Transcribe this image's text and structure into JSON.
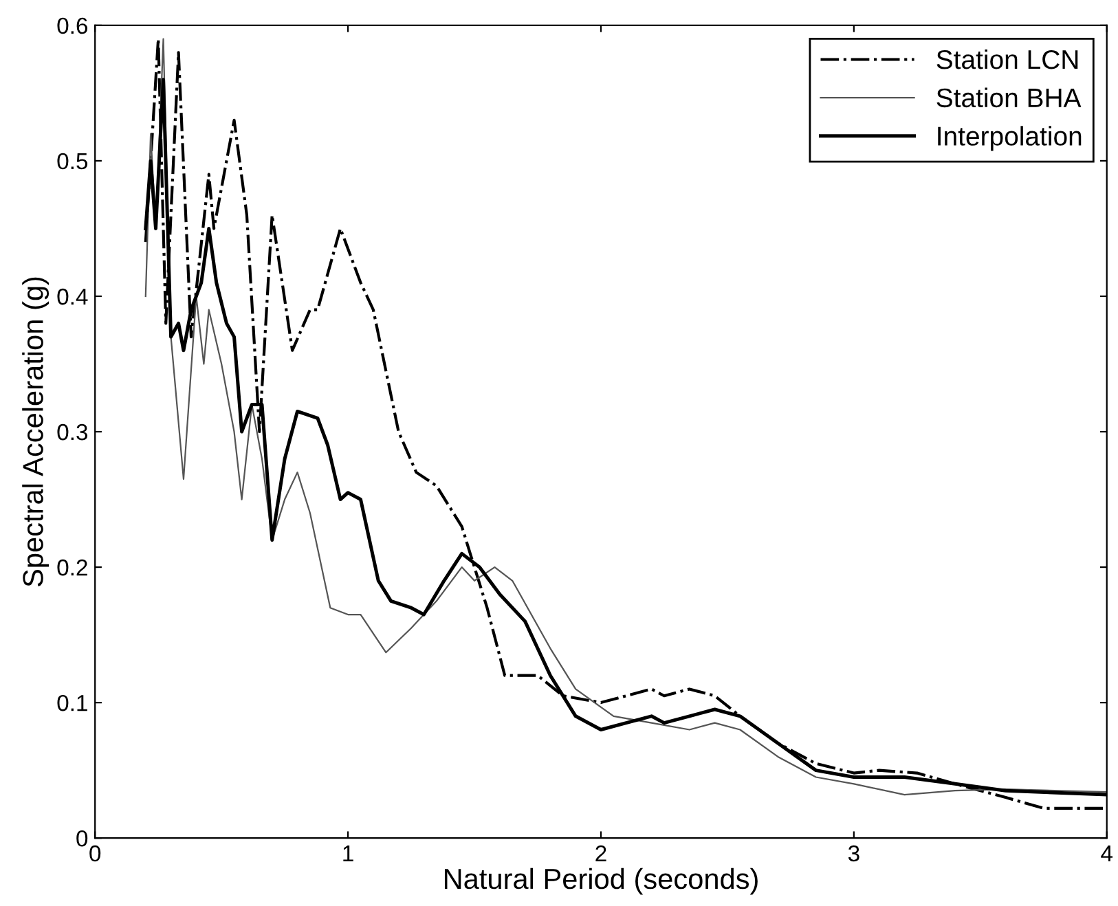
{
  "chart_data": {
    "type": "line",
    "xlabel": "Natural Period (seconds)",
    "ylabel": "Spectral Acceleration (g)",
    "xlim": [
      0,
      4
    ],
    "ylim": [
      0,
      0.6
    ],
    "xticks": [
      0,
      1,
      2,
      3,
      4
    ],
    "yticks": [
      0,
      0.1,
      0.2,
      0.3,
      0.4,
      0.5,
      0.6
    ],
    "grid": false,
    "legend": "top right",
    "marker": "none",
    "series": [
      {
        "name": "Station LCN",
        "color": "#000000",
        "line_style": "dashdot",
        "x": [
          0.2,
          0.25,
          0.28,
          0.33,
          0.38,
          0.45,
          0.47,
          0.55,
          0.6,
          0.65,
          0.7,
          0.78,
          0.85,
          0.88,
          0.97,
          1.05,
          1.1,
          1.2,
          1.27,
          1.35,
          1.45,
          1.55,
          1.62,
          1.75,
          1.85,
          2.0,
          2.1,
          2.2,
          2.25,
          2.35,
          2.45,
          2.55,
          2.7,
          2.85,
          3.0,
          3.1,
          3.25,
          3.4,
          3.6,
          3.75,
          4.0
        ],
        "values": [
          0.44,
          0.59,
          0.38,
          0.58,
          0.37,
          0.49,
          0.45,
          0.53,
          0.46,
          0.3,
          0.46,
          0.36,
          0.39,
          0.39,
          0.45,
          0.41,
          0.39,
          0.3,
          0.27,
          0.26,
          0.23,
          0.17,
          0.12,
          0.12,
          0.105,
          0.1,
          0.105,
          0.11,
          0.105,
          0.11,
          0.105,
          0.09,
          0.07,
          0.055,
          0.048,
          0.05,
          0.048,
          0.04,
          0.03,
          0.022,
          0.022
        ]
      },
      {
        "name": "Station BHA",
        "color": "#555555",
        "line_style": "solid",
        "x": [
          0.2,
          0.22,
          0.24,
          0.27,
          0.3,
          0.35,
          0.4,
          0.43,
          0.45,
          0.5,
          0.55,
          0.58,
          0.62,
          0.66,
          0.7,
          0.75,
          0.8,
          0.85,
          0.93,
          1.0,
          1.05,
          1.15,
          1.25,
          1.35,
          1.45,
          1.5,
          1.58,
          1.65,
          1.8,
          1.9,
          2.05,
          2.2,
          2.35,
          2.45,
          2.55,
          2.7,
          2.85,
          3.0,
          3.2,
          3.4,
          3.6,
          4.0
        ],
        "values": [
          0.4,
          0.52,
          0.45,
          0.59,
          0.37,
          0.265,
          0.4,
          0.35,
          0.39,
          0.35,
          0.3,
          0.25,
          0.32,
          0.28,
          0.22,
          0.25,
          0.27,
          0.24,
          0.17,
          0.165,
          0.165,
          0.137,
          0.155,
          0.175,
          0.2,
          0.19,
          0.2,
          0.19,
          0.14,
          0.11,
          0.09,
          0.085,
          0.08,
          0.085,
          0.08,
          0.06,
          0.045,
          0.04,
          0.032,
          0.035,
          0.036,
          0.034
        ]
      },
      {
        "name": "Interpolation",
        "color": "#000000",
        "line_style": "solid",
        "x": [
          0.2,
          0.22,
          0.24,
          0.27,
          0.3,
          0.33,
          0.35,
          0.38,
          0.42,
          0.45,
          0.48,
          0.52,
          0.55,
          0.58,
          0.62,
          0.66,
          0.7,
          0.75,
          0.8,
          0.88,
          0.92,
          0.97,
          1.0,
          1.05,
          1.12,
          1.17,
          1.25,
          1.3,
          1.38,
          1.45,
          1.52,
          1.6,
          1.7,
          1.8,
          1.9,
          2.0,
          2.1,
          2.2,
          2.25,
          2.35,
          2.45,
          2.55,
          2.7,
          2.85,
          3.0,
          3.2,
          3.4,
          3.6,
          4.0
        ],
        "values": [
          0.45,
          0.5,
          0.45,
          0.56,
          0.37,
          0.38,
          0.36,
          0.39,
          0.41,
          0.45,
          0.41,
          0.38,
          0.37,
          0.3,
          0.32,
          0.32,
          0.22,
          0.28,
          0.315,
          0.31,
          0.29,
          0.25,
          0.255,
          0.25,
          0.19,
          0.175,
          0.17,
          0.165,
          0.19,
          0.21,
          0.2,
          0.18,
          0.16,
          0.12,
          0.09,
          0.08,
          0.085,
          0.09,
          0.085,
          0.09,
          0.095,
          0.09,
          0.07,
          0.05,
          0.045,
          0.045,
          0.04,
          0.035,
          0.032
        ]
      }
    ]
  }
}
